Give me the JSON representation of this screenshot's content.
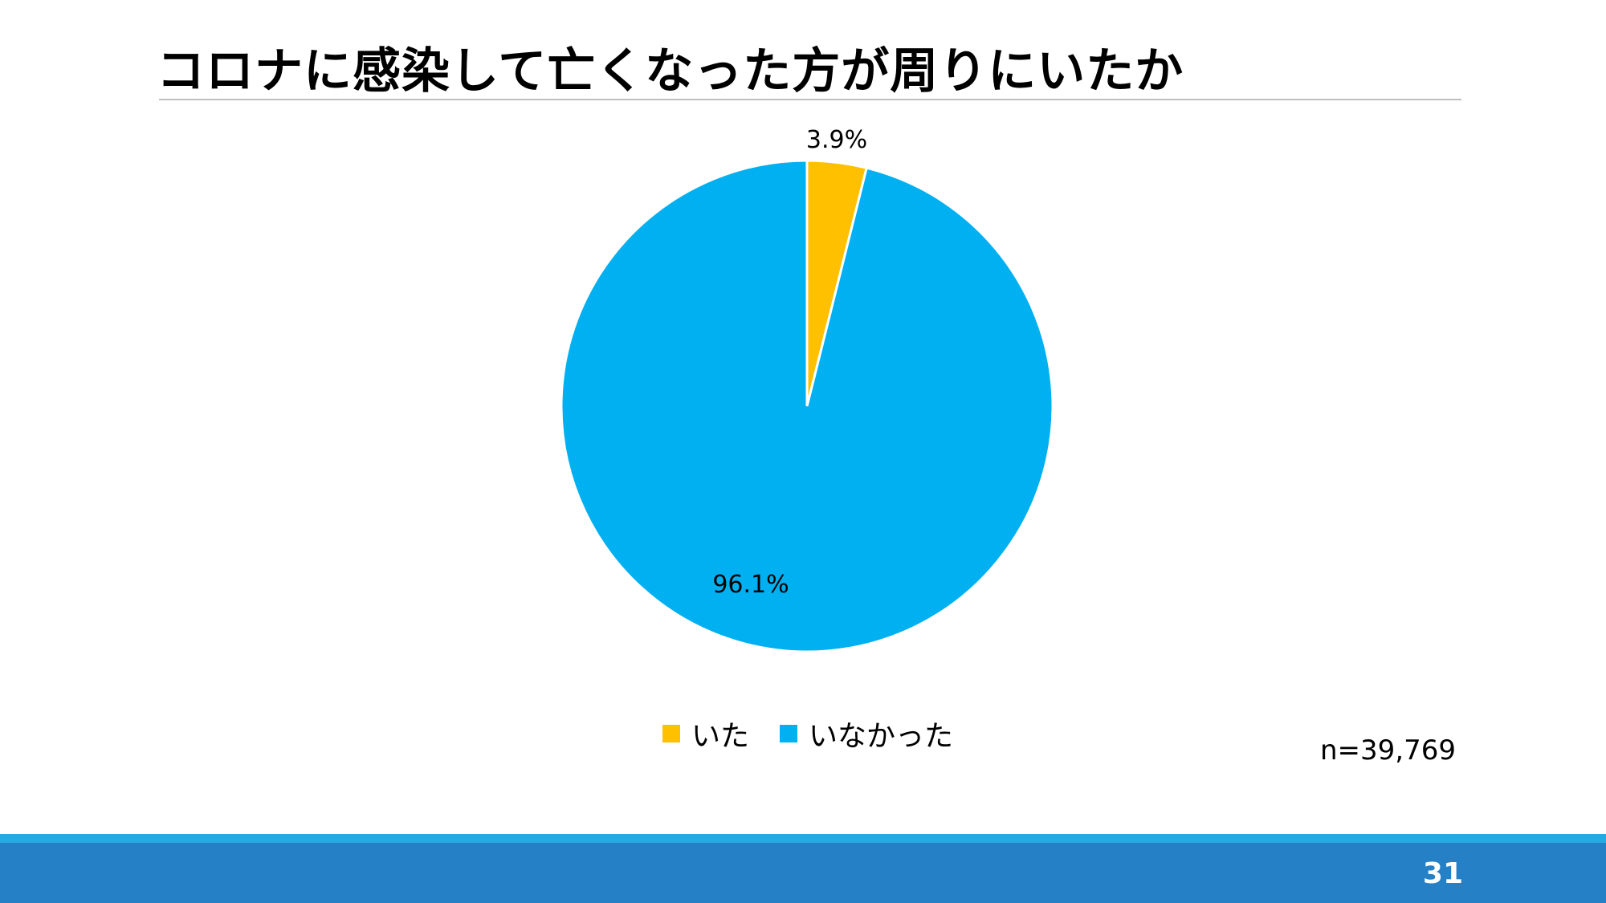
{
  "slide": {
    "title": "コロナに感染して亡くなった方が周りにいたか",
    "page_number": "31",
    "sample_size": "n=39,769"
  },
  "chart_data": {
    "type": "pie",
    "title": "",
    "categories": [
      "いた",
      "いなかった"
    ],
    "values": [
      3.9,
      96.1
    ],
    "labels": [
      "3.9%",
      "96.1%"
    ],
    "colors": [
      "#ffc000",
      "#00b0f0"
    ],
    "legend_position": "bottom"
  },
  "colors": {
    "footer_bar": "#2680c6",
    "footer_stripe": "#27aae1"
  }
}
